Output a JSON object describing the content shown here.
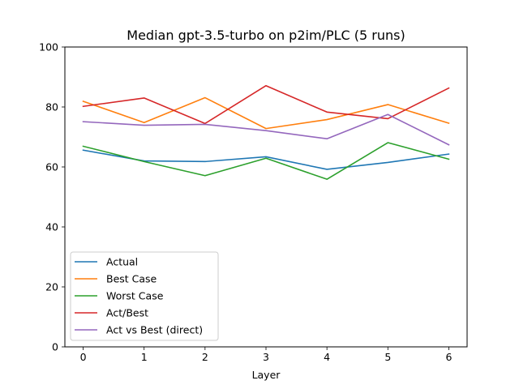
{
  "chart_data": {
    "type": "line",
    "title": "Median gpt-3.5-turbo on p2im/PLC (5 runs)",
    "xlabel": "Layer",
    "ylabel": "",
    "x": [
      0,
      1,
      2,
      3,
      4,
      5,
      6
    ],
    "xticks": [
      "0",
      "1",
      "2",
      "3",
      "4",
      "5",
      "6"
    ],
    "xlim": [
      -0.3,
      6.3
    ],
    "ylim": [
      0,
      100
    ],
    "yticks": [
      "0",
      "20",
      "40",
      "60",
      "80",
      "100"
    ],
    "legend_position": "lower-left",
    "grid": false,
    "series": [
      {
        "name": "Actual",
        "color": "#1f77b4",
        "values": [
          65.6,
          62.0,
          61.8,
          63.4,
          59.2,
          61.5,
          64.3
        ]
      },
      {
        "name": "Best Case",
        "color": "#ff7f0e",
        "values": [
          81.9,
          74.8,
          83.1,
          72.8,
          75.8,
          80.8,
          74.6
        ]
      },
      {
        "name": "Worst Case",
        "color": "#2ca02c",
        "values": [
          66.9,
          61.8,
          57.1,
          62.9,
          55.9,
          68.1,
          62.6
        ]
      },
      {
        "name": "Act/Best",
        "color": "#d62728",
        "values": [
          80.2,
          83.0,
          74.5,
          87.1,
          78.3,
          76.1,
          86.3
        ]
      },
      {
        "name": "Act vs Best (direct)",
        "color": "#9467bd",
        "values": [
          75.1,
          73.9,
          74.2,
          72.1,
          69.4,
          77.5,
          67.4
        ]
      }
    ]
  }
}
